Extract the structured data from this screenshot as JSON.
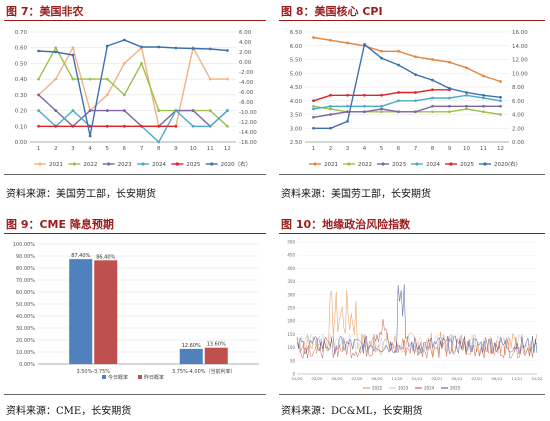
{
  "panels": {
    "p7": {
      "title": "图 7：美国非农",
      "source": "资料来源：美国劳工部，长安期货"
    },
    "p8": {
      "title": "图 8：美国核心 CPI",
      "source": "资料来源：美国劳工部，长安期货"
    },
    "p9": {
      "title": "图 9：CME 降息预期",
      "source": "资料来源：CME，长安期货"
    },
    "p10": {
      "title": "图 10：地缘政治风险指数",
      "source": "资料来源：DC&ML，长安期货"
    }
  },
  "colors": {
    "title_red": "#9b1c1c"
  },
  "chart_data": [
    {
      "id": "p7",
      "type": "line",
      "x": [
        1,
        2,
        3,
        4,
        5,
        6,
        7,
        8,
        9,
        10,
        11,
        12
      ],
      "ylim": [
        0,
        0.7
      ],
      "y2lim": [
        -16,
        6
      ],
      "yticks": [
        "0.00",
        "0.10",
        "0.20",
        "0.30",
        "0.40",
        "0.50",
        "0.60",
        "0.70"
      ],
      "y2ticks": [
        "-16.00",
        "-14.00",
        "-12.00",
        "-10.00",
        "-8.00",
        "-6.00",
        "-4.00",
        "-2.00",
        "0.00",
        "2.00",
        "4.00",
        "6.00"
      ],
      "series": [
        {
          "name": "2021",
          "color": "#f3b082",
          "axis": "left",
          "values": [
            0.3,
            0.4,
            0.6,
            0.2,
            0.3,
            0.5,
            0.6,
            0.1,
            0.1,
            0.6,
            0.4,
            0.4
          ]
        },
        {
          "name": "2022",
          "color": "#9cc04a",
          "axis": "left",
          "values": [
            0.4,
            0.6,
            0.4,
            0.4,
            0.4,
            0.3,
            0.5,
            0.2,
            0.2,
            0.2,
            0.2,
            0.1
          ]
        },
        {
          "name": "2023",
          "color": "#8064a2",
          "axis": "left",
          "values": [
            0.3,
            0.2,
            0.1,
            0.2,
            0.2,
            0.2,
            0.1,
            0.1,
            0.2,
            0.2,
            0.1,
            0.2
          ]
        },
        {
          "name": "2024",
          "color": "#4bacc6",
          "axis": "left",
          "values": [
            0.2,
            0.1,
            0.2,
            0.1,
            0.1,
            0.1,
            0.1,
            0.0,
            0.2,
            0.1,
            0.1,
            0.2
          ]
        },
        {
          "name": "2025",
          "color": "#e0242a",
          "axis": "left",
          "values": [
            0.1,
            0.1,
            0.1,
            0.1,
            0.1,
            0.1,
            0.1,
            0.1,
            0.1,
            null,
            null,
            null
          ]
        },
        {
          "name": "2020（右）",
          "color": "#3e70b0",
          "axis": "right",
          "values": [
            2.2,
            2.0,
            1.4,
            -14.8,
            3.2,
            4.4,
            3.0,
            3.0,
            2.8,
            2.7,
            2.6,
            2.3
          ]
        }
      ]
    },
    {
      "id": "p8",
      "type": "line",
      "x": [
        1,
        2,
        3,
        4,
        5,
        6,
        7,
        8,
        9,
        10,
        11,
        12
      ],
      "ylim": [
        2.5,
        6.5
      ],
      "y2lim": [
        0,
        16
      ],
      "yticks": [
        "2.50",
        "3.00",
        "3.50",
        "4.00",
        "4.50",
        "5.00",
        "5.50",
        "6.00",
        "6.50"
      ],
      "y2ticks": [
        "0.00",
        "2.00",
        "4.00",
        "6.00",
        "8.00",
        "10.00",
        "12.00",
        "14.00",
        "16.00"
      ],
      "series": [
        {
          "name": "2021",
          "color": "#e3853c",
          "axis": "left",
          "values": [
            6.3,
            6.2,
            6.1,
            6.0,
            5.8,
            5.8,
            5.6,
            5.5,
            5.4,
            5.2,
            4.9,
            4.7
          ]
        },
        {
          "name": "2022",
          "color": "#9cc04a",
          "axis": "left",
          "values": [
            3.8,
            3.7,
            3.6,
            3.6,
            3.6,
            3.6,
            3.6,
            3.6,
            3.6,
            3.7,
            3.6,
            3.5
          ]
        },
        {
          "name": "2023",
          "color": "#8064a2",
          "axis": "left",
          "values": [
            3.4,
            3.5,
            3.6,
            3.6,
            3.7,
            3.6,
            3.6,
            3.8,
            3.8,
            3.8,
            3.8,
            3.8
          ]
        },
        {
          "name": "2024",
          "color": "#4bacc6",
          "axis": "left",
          "values": [
            3.7,
            3.8,
            3.8,
            3.8,
            3.8,
            4.0,
            4.0,
            4.1,
            4.1,
            4.2,
            4.1,
            4.0
          ]
        },
        {
          "name": "2025",
          "color": "#e0242a",
          "axis": "left",
          "values": [
            4.0,
            4.2,
            4.2,
            4.2,
            4.2,
            4.3,
            4.3,
            4.4,
            4.4,
            null,
            null,
            null
          ]
        },
        {
          "name": "2020(右)",
          "color": "#3e70b0",
          "axis": "right",
          "values": [
            2.0,
            2.0,
            3.0,
            14.2,
            12.2,
            11.2,
            9.8,
            9.0,
            7.8,
            7.2,
            6.8,
            6.5
          ]
        }
      ]
    },
    {
      "id": "p9",
      "type": "bar",
      "categories": [
        "3.50%-3.75%",
        "3.75%-4.00%（当前利率）"
      ],
      "ylim": [
        0,
        100
      ],
      "yticks": [
        "0.00%",
        "10.00%",
        "20.00%",
        "30.00%",
        "40.00%",
        "50.00%",
        "60.00%",
        "70.00%",
        "80.00%",
        "90.00%",
        "100.00%"
      ],
      "series": [
        {
          "name": "今日概率",
          "color": "#4f81bd",
          "values": [
            87.4,
            12.6
          ]
        },
        {
          "name": "昨日概率",
          "color": "#c0504d",
          "values": [
            86.4,
            13.6
          ]
        }
      ],
      "value_labels": [
        [
          "87.40%",
          "12.60%"
        ],
        [
          "86.40%",
          "13.60%"
        ]
      ]
    },
    {
      "id": "p10",
      "type": "line",
      "ylim": [
        0,
        500
      ],
      "yticks": [
        "0",
        "50",
        "100",
        "150",
        "200",
        "250",
        "300",
        "350",
        "400",
        "450",
        "500"
      ],
      "xticks": [
        "01/20",
        "03/20",
        "05/20",
        "07/20",
        "09/20",
        "11/20",
        "01/21",
        "03/21",
        "05/21",
        "07/21",
        "09/21",
        "11/21",
        "01/22"
      ],
      "series": [
        {
          "name": "2022",
          "color": "#e8893a"
        },
        {
          "name": "2023",
          "color": "#b8c8d8"
        },
        {
          "name": "2024",
          "color": "#c05040"
        },
        {
          "name": "2025",
          "color": "#3a4a9a"
        }
      ]
    }
  ]
}
